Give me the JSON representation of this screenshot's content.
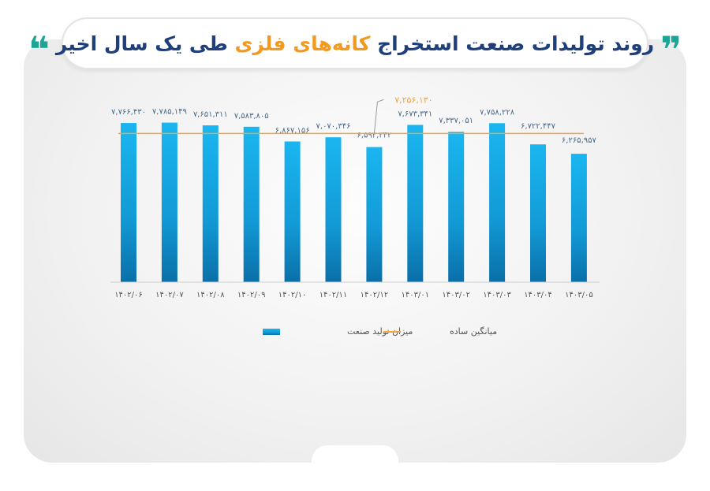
{
  "title": {
    "part1": "روند تولیدات صنعت استخراج",
    "highlight": "کانه‌های فلزی",
    "part2": "طی یک سال اخیر"
  },
  "colors": {
    "bar": "#1aaee8",
    "bar_dark": "#0a7fb8",
    "average": "#f0a340",
    "title": "#1f3f7a",
    "accent": "#f39a1e",
    "quote": "#1aa597"
  },
  "chart_data": {
    "type": "bar",
    "categories": [
      "۱۴۰۲/۰۶",
      "۱۴۰۲/۰۷",
      "۱۴۰۲/۰۸",
      "۱۴۰۲/۰۹",
      "۱۴۰۲/۱۰",
      "۱۴۰۲/۱۱",
      "۱۴۰۲/۱۲",
      "۱۴۰۳/۰۱",
      "۱۴۰۳/۰۲",
      "۱۴۰۳/۰۳",
      "۱۴۰۳/۰۴",
      "۱۴۰۳/۰۵"
    ],
    "series": [
      {
        "name": "میزان تولید صنعت",
        "values": [
          7766430,
          7785149,
          7651311,
          7583805,
          6867156,
          7070346,
          6592342,
          7673341,
          7337051,
          7758228,
          6722447,
          6265957
        ],
        "labels": [
          "۷,۷۶۶,۴۳۰",
          "۷,۷۸۵,۱۴۹",
          "۷,۶۵۱,۳۱۱",
          "۷,۵۸۳,۸۰۵",
          "۶,۸۶۷,۱۵۶",
          "۷,۰۷۰,۳۴۶",
          "۶,۵۹۲,۳۴۲",
          "۷,۶۷۳,۳۴۱",
          "۷,۳۳۷,۰۵۱",
          "۷,۷۵۸,۲۲۸",
          "۶,۷۲۲,۴۴۷",
          "۶,۲۶۵,۹۵۷"
        ]
      }
    ],
    "average": {
      "name": "میانگین ساده",
      "value": 7256130,
      "label": "۷,۲۵۶,۱۳۰"
    },
    "ylim": [
      0,
      8000000
    ],
    "grid": false,
    "legend": "bottom"
  }
}
